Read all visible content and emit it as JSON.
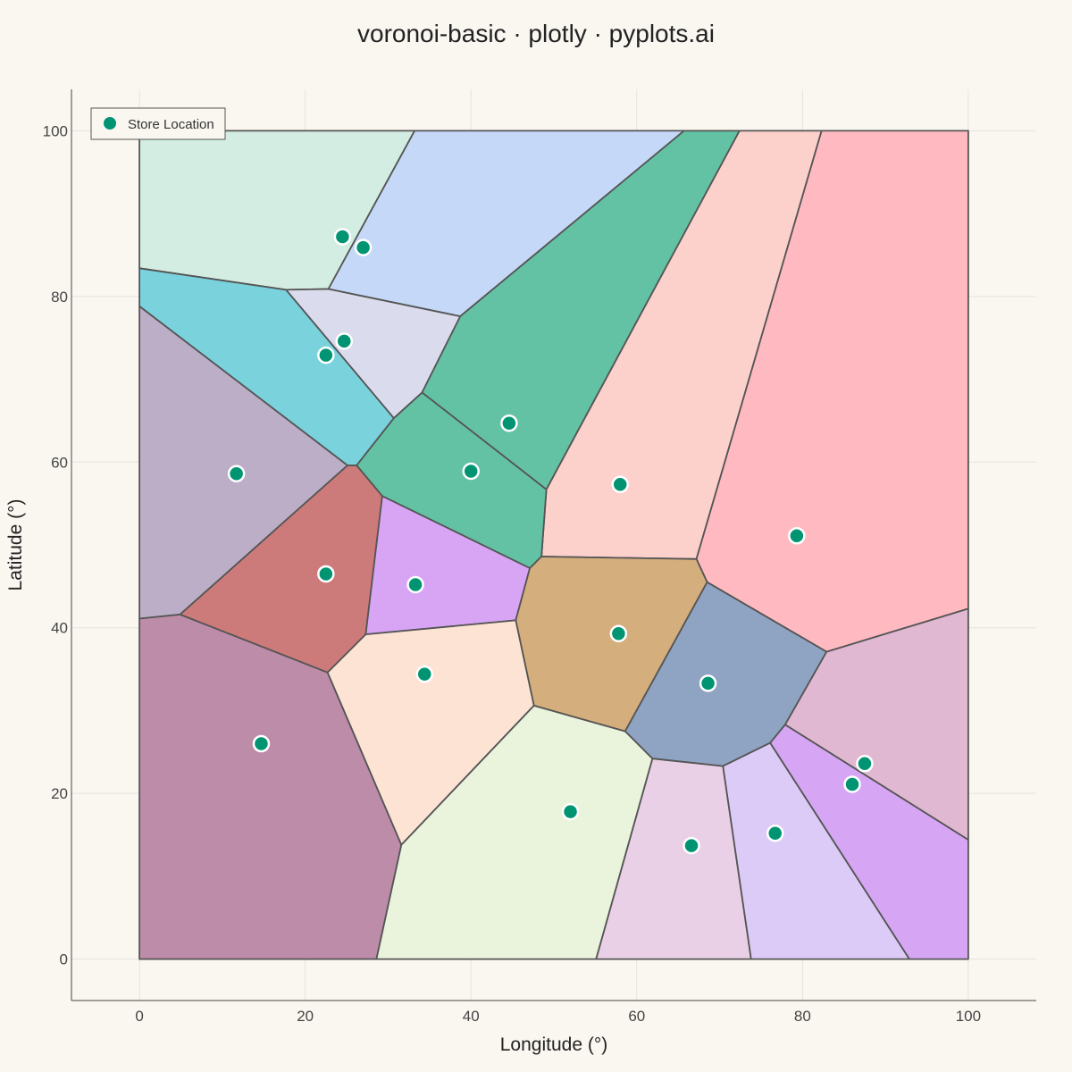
{
  "chart_data": {
    "type": "scatter",
    "title": "voronoi-basic · plotly · pyplots.ai",
    "xlabel": "Longitude (°)",
    "ylabel": "Latitude (°)",
    "xlim": [
      -8.2,
      108.2
    ],
    "ylim": [
      -5,
      105
    ],
    "xticks": [
      0,
      20,
      40,
      60,
      80,
      100
    ],
    "yticks": [
      0,
      20,
      40,
      60,
      80,
      100
    ],
    "grid": true,
    "legend": {
      "position": "top-left",
      "entries": [
        "Store Location"
      ]
    },
    "marker_color": "#009473",
    "cell_edge_color": "#555555",
    "series": [
      {
        "name": "Store Location",
        "points": [
          {
            "x": 24.5,
            "y": 87.2
          },
          {
            "x": 27.0,
            "y": 85.9
          },
          {
            "x": 24.7,
            "y": 74.6
          },
          {
            "x": 22.5,
            "y": 72.9
          },
          {
            "x": 44.6,
            "y": 64.7
          },
          {
            "x": 11.7,
            "y": 58.6
          },
          {
            "x": 40.0,
            "y": 58.9
          },
          {
            "x": 58.0,
            "y": 57.3
          },
          {
            "x": 79.3,
            "y": 51.1
          },
          {
            "x": 22.5,
            "y": 46.5
          },
          {
            "x": 33.3,
            "y": 45.2
          },
          {
            "x": 57.8,
            "y": 39.3
          },
          {
            "x": 34.4,
            "y": 34.4
          },
          {
            "x": 68.6,
            "y": 33.3
          },
          {
            "x": 14.7,
            "y": 26.0
          },
          {
            "x": 87.5,
            "y": 23.6
          },
          {
            "x": 86.0,
            "y": 21.1
          },
          {
            "x": 52.0,
            "y": 17.8
          },
          {
            "x": 66.6,
            "y": 13.7
          },
          {
            "x": 76.7,
            "y": 15.2
          }
        ]
      }
    ],
    "cells": [
      {
        "fill": "#d3ede2",
        "vertices": [
          [
            0,
            100
          ],
          [
            33.2,
            100
          ],
          [
            22.8,
            80.9
          ],
          [
            17.7,
            80.8
          ],
          [
            0,
            83.4
          ]
        ]
      },
      {
        "fill": "#c5d8f7",
        "vertices": [
          [
            33.2,
            100
          ],
          [
            65.7,
            100
          ],
          [
            38.7,
            77.6
          ],
          [
            22.8,
            80.9
          ]
        ]
      },
      {
        "fill": "#79d2dc",
        "vertices": [
          [
            0,
            83.4
          ],
          [
            17.7,
            80.8
          ],
          [
            30.7,
            65.3
          ],
          [
            26.2,
            59.6
          ],
          [
            25.1,
            59.6
          ],
          [
            0,
            78.8
          ]
        ]
      },
      {
        "fill": "#dadced",
        "vertices": [
          [
            17.7,
            80.8
          ],
          [
            22.8,
            80.9
          ],
          [
            38.7,
            77.6
          ],
          [
            34.1,
            68.4
          ],
          [
            30.7,
            65.3
          ]
        ]
      },
      {
        "fill": "#63c1a4",
        "vertices": [
          [
            65.7,
            100
          ],
          [
            72.4,
            100
          ],
          [
            49.1,
            56.7
          ],
          [
            34.1,
            68.4
          ],
          [
            38.7,
            77.6
          ]
        ]
      },
      {
        "fill": "#fcd0cb",
        "vertices": [
          [
            72.4,
            100
          ],
          [
            82.3,
            100
          ],
          [
            67.2,
            48.3
          ],
          [
            48.5,
            48.6
          ],
          [
            49.1,
            56.7
          ]
        ]
      },
      {
        "fill": "#ffbac1",
        "vertices": [
          [
            82.3,
            100
          ],
          [
            100,
            100
          ],
          [
            100,
            42.3
          ],
          [
            82.9,
            37.1
          ],
          [
            68.5,
            45.5
          ],
          [
            67.2,
            48.3
          ]
        ]
      },
      {
        "fill": "#bcaec7",
        "vertices": [
          [
            0,
            78.8
          ],
          [
            25.1,
            59.6
          ],
          [
            4.9,
            41.6
          ],
          [
            0,
            41.1
          ]
        ]
      },
      {
        "fill": "#63c1a4",
        "vertices": [
          [
            34.1,
            68.4
          ],
          [
            49.1,
            56.7
          ],
          [
            48.5,
            48.6
          ],
          [
            47.1,
            47.2
          ],
          [
            29.3,
            55.9
          ],
          [
            26.2,
            59.6
          ],
          [
            30.7,
            65.3
          ]
        ]
      },
      {
        "fill": "#cd7b7a",
        "vertices": [
          [
            25.1,
            59.6
          ],
          [
            26.2,
            59.6
          ],
          [
            29.3,
            55.9
          ],
          [
            27.3,
            39.2
          ],
          [
            22.7,
            34.6
          ],
          [
            4.9,
            41.6
          ]
        ]
      },
      {
        "fill": "#d8a5f5",
        "vertices": [
          [
            29.3,
            55.9
          ],
          [
            47.1,
            47.2
          ],
          [
            45.4,
            40.9
          ],
          [
            27.3,
            39.2
          ]
        ]
      },
      {
        "fill": "#d4ae7c",
        "vertices": [
          [
            47.1,
            47.2
          ],
          [
            48.5,
            48.6
          ],
          [
            67.2,
            48.3
          ],
          [
            68.5,
            45.5
          ],
          [
            58.6,
            27.5
          ],
          [
            47.6,
            30.6
          ],
          [
            45.4,
            40.9
          ]
        ]
      },
      {
        "fill": "#bd8ca8",
        "vertices": [
          [
            0,
            41.1
          ],
          [
            4.9,
            41.6
          ],
          [
            22.7,
            34.6
          ],
          [
            31.6,
            13.8
          ],
          [
            28.6,
            0
          ],
          [
            0,
            0
          ]
        ]
      },
      {
        "fill": "#fde3d4",
        "vertices": [
          [
            27.3,
            39.2
          ],
          [
            45.4,
            40.9
          ],
          [
            47.6,
            30.6
          ],
          [
            31.6,
            13.8
          ],
          [
            22.7,
            34.6
          ]
        ]
      },
      {
        "fill": "#8fa3c2",
        "vertices": [
          [
            68.5,
            45.5
          ],
          [
            82.9,
            37.1
          ],
          [
            77.9,
            28.3
          ],
          [
            76.1,
            26.1
          ],
          [
            70.4,
            23.3
          ],
          [
            61.9,
            24.2
          ],
          [
            58.6,
            27.5
          ]
        ]
      },
      {
        "fill": "#e0b8d1",
        "vertices": [
          [
            82.9,
            37.1
          ],
          [
            100,
            42.3
          ],
          [
            100,
            14.4
          ],
          [
            77.9,
            28.3
          ]
        ]
      },
      {
        "fill": "#eaf3dc",
        "vertices": [
          [
            31.6,
            13.8
          ],
          [
            47.6,
            30.6
          ],
          [
            58.6,
            27.5
          ],
          [
            61.9,
            24.2
          ],
          [
            55.1,
            0
          ],
          [
            28.6,
            0
          ]
        ]
      },
      {
        "fill": "#ead0e7",
        "vertices": [
          [
            55.1,
            0
          ],
          [
            61.9,
            24.2
          ],
          [
            70.4,
            23.3
          ],
          [
            73.8,
            0
          ]
        ]
      },
      {
        "fill": "#dccbf7",
        "vertices": [
          [
            73.8,
            0
          ],
          [
            70.4,
            23.3
          ],
          [
            76.1,
            26.1
          ],
          [
            92.9,
            0
          ]
        ]
      },
      {
        "fill": "#d6a6f5",
        "vertices": [
          [
            92.9,
            0
          ],
          [
            76.1,
            26.1
          ],
          [
            77.9,
            28.3
          ],
          [
            100,
            14.4
          ],
          [
            100,
            0
          ]
        ]
      }
    ]
  }
}
